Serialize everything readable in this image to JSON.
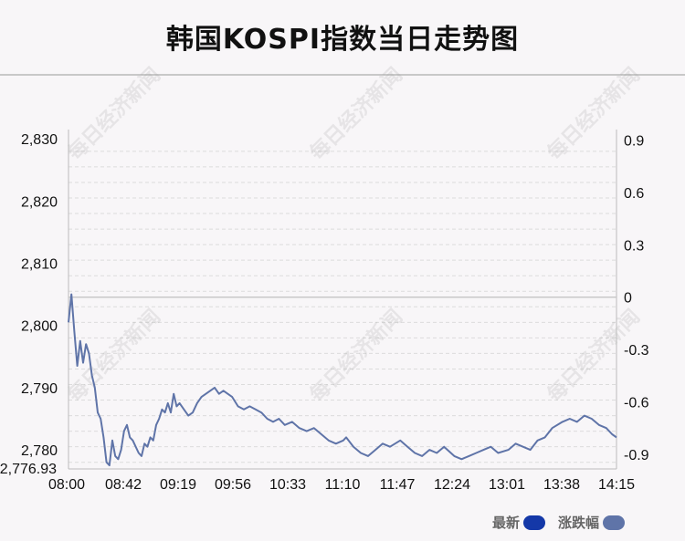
{
  "title": "韩国KOSPI指数当日走势图",
  "watermark_text": "每日经济新闻",
  "legend": [
    {
      "label": "最新",
      "color": "#1438a8"
    },
    {
      "label": "涨跌幅",
      "color": "#5f74a8"
    }
  ],
  "chart_data": {
    "type": "line",
    "title": "韩国KOSPI指数当日走势图",
    "xlabel": "",
    "ylabel": "",
    "x_ticks": [
      "08:00",
      "08:42",
      "09:19",
      "09:56",
      "10:33",
      "11:10",
      "11:47",
      "12:24",
      "13:01",
      "13:38",
      "14:15"
    ],
    "y_ticks_left": [
      "2,830",
      "2,820",
      "2,810",
      "2,800",
      "2,790",
      "2,780"
    ],
    "y_min_label": "2,776.93",
    "y_ticks_right": [
      "0.9",
      "0.6",
      "0.3",
      "0",
      "-0.3",
      "-0.6",
      "-0.9"
    ],
    "ylim_left": [
      2776.93,
      2831.5
    ],
    "ylim_right": [
      -0.9,
      0.9
    ],
    "previous_close": 2804.55,
    "grid": true,
    "legend_position": "bottom-right",
    "line_color": "#5f74a8",
    "series": [
      {
        "name": "最新",
        "x": [
          "08:00",
          "08:02",
          "08:04",
          "08:06",
          "08:08",
          "08:10",
          "08:12",
          "08:14",
          "08:16",
          "08:18",
          "08:20",
          "08:22",
          "08:24",
          "08:26",
          "08:28",
          "08:30",
          "08:32",
          "08:34",
          "08:36",
          "08:38",
          "08:40",
          "08:42",
          "08:44",
          "08:46",
          "08:48",
          "08:50",
          "08:52",
          "08:54",
          "08:56",
          "08:58",
          "09:00",
          "09:02",
          "09:04",
          "09:06",
          "09:08",
          "09:10",
          "09:12",
          "09:14",
          "09:16",
          "09:19",
          "09:22",
          "09:25",
          "09:28",
          "09:31",
          "09:34",
          "09:37",
          "09:40",
          "09:43",
          "09:46",
          "09:49",
          "09:52",
          "09:56",
          "10:00",
          "10:04",
          "10:08",
          "10:12",
          "10:16",
          "10:20",
          "10:24",
          "10:28",
          "10:33",
          "10:38",
          "10:43",
          "10:48",
          "10:53",
          "10:58",
          "11:03",
          "11:08",
          "11:10",
          "11:15",
          "11:20",
          "11:25",
          "11:30",
          "11:35",
          "11:40",
          "11:47",
          "11:52",
          "11:57",
          "12:02",
          "12:07",
          "12:12",
          "12:17",
          "12:24",
          "12:29",
          "12:34",
          "12:39",
          "12:44",
          "12:49",
          "12:54",
          "13:01",
          "13:06",
          "13:11",
          "13:16",
          "13:21",
          "13:26",
          "13:31",
          "13:38",
          "13:43",
          "13:48",
          "13:53",
          "13:58",
          "14:03",
          "14:08",
          "14:12",
          "14:15"
        ],
        "values": [
          2800.5,
          2805.0,
          2799.0,
          2793.5,
          2797.5,
          2794.0,
          2797.0,
          2795.5,
          2792.0,
          2790.0,
          2786.0,
          2785.0,
          2782.0,
          2778.0,
          2777.5,
          2781.5,
          2779.0,
          2778.5,
          2780.0,
          2783.0,
          2784.0,
          2782.0,
          2781.5,
          2780.5,
          2779.5,
          2779.0,
          2781.0,
          2780.5,
          2782.0,
          2781.5,
          2784.0,
          2785.0,
          2786.5,
          2786.0,
          2787.5,
          2786.0,
          2789.0,
          2787.0,
          2787.5,
          2786.5,
          2785.5,
          2786.0,
          2787.5,
          2788.5,
          2789.0,
          2789.5,
          2790.0,
          2789.0,
          2789.5,
          2789.0,
          2788.5,
          2787.0,
          2786.5,
          2787.0,
          2786.5,
          2786.0,
          2785.0,
          2784.5,
          2785.0,
          2784.0,
          2784.5,
          2783.5,
          2783.0,
          2783.5,
          2782.5,
          2781.5,
          2781.0,
          2781.5,
          2782.0,
          2780.5,
          2779.5,
          2779.0,
          2780.0,
          2781.0,
          2780.5,
          2781.5,
          2780.5,
          2779.5,
          2779.0,
          2780.0,
          2779.5,
          2780.5,
          2779.0,
          2778.5,
          2779.0,
          2779.5,
          2780.0,
          2780.5,
          2779.5,
          2780.0,
          2781.0,
          2780.5,
          2780.0,
          2781.5,
          2782.0,
          2783.5,
          2784.5,
          2785.0,
          2784.5,
          2785.5,
          2785.0,
          2784.0,
          2783.5,
          2782.5,
          2782.0
        ]
      }
    ]
  }
}
